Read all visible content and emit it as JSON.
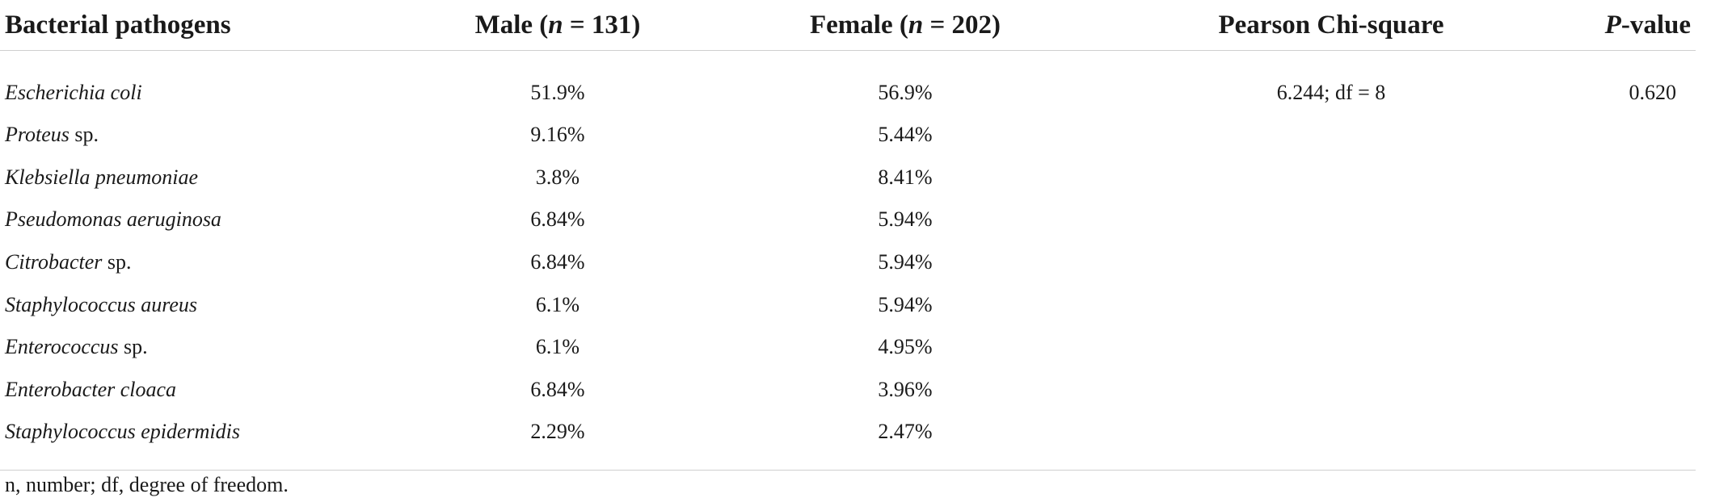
{
  "table": {
    "headers": {
      "pathogens": "Bacterial pathogens",
      "male_prefix": "Male (",
      "male_n": "n",
      "male_suffix": " = 131)",
      "female_prefix": "Female (",
      "female_n": "n",
      "female_suffix": " = 202)",
      "chi": "Pearson Chi-square",
      "p_italic": "P",
      "p_suffix": "-value"
    },
    "rows": [
      {
        "name_italic": "Escherichia coli",
        "name_rest": "",
        "male": "51.9%",
        "female": "56.9%",
        "chi": "6.244; df = 8",
        "p": "0.620"
      },
      {
        "name_italic": "Proteus",
        "name_rest": " sp.",
        "male": "9.16%",
        "female": "5.44%",
        "chi": "",
        "p": ""
      },
      {
        "name_italic": "Klebsiella pneumoniae",
        "name_rest": "",
        "male": "3.8%",
        "female": "8.41%",
        "chi": "",
        "p": ""
      },
      {
        "name_italic": "Pseudomonas aeruginosa",
        "name_rest": "",
        "male": "6.84%",
        "female": "5.94%",
        "chi": "",
        "p": ""
      },
      {
        "name_italic": "Citrobacter",
        "name_rest": " sp.",
        "male": "6.84%",
        "female": "5.94%",
        "chi": "",
        "p": ""
      },
      {
        "name_italic": "Staphylococcus aureus",
        "name_rest": "",
        "male": "6.1%",
        "female": "5.94%",
        "chi": "",
        "p": ""
      },
      {
        "name_italic": "Enterococcus",
        "name_rest": " sp.",
        "male": "6.1%",
        "female": "4.95%",
        "chi": "",
        "p": ""
      },
      {
        "name_italic": "Enterobacter cloaca",
        "name_rest": "",
        "male": "6.84%",
        "female": "3.96%",
        "chi": "",
        "p": ""
      },
      {
        "name_italic": "Staphylococcus epidermidis",
        "name_rest": "",
        "male": "2.29%",
        "female": "2.47%",
        "chi": "",
        "p": ""
      }
    ]
  },
  "footnote": "n, number; df, degree of freedom."
}
